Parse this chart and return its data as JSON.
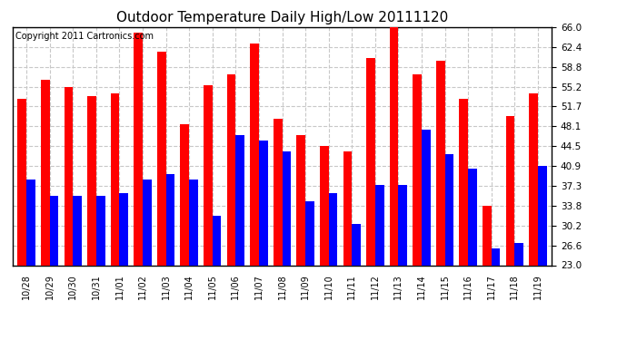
{
  "title": "Outdoor Temperature Daily High/Low 20111120",
  "copyright": "Copyright 2011 Cartronics.com",
  "labels": [
    "10/28",
    "10/29",
    "10/30",
    "10/31",
    "11/01",
    "11/02",
    "11/03",
    "11/04",
    "11/05",
    "11/06",
    "11/07",
    "11/08",
    "11/09",
    "11/10",
    "11/11",
    "11/12",
    "11/13",
    "11/14",
    "11/15",
    "11/16",
    "11/17",
    "11/18",
    "11/19"
  ],
  "highs": [
    53.0,
    56.5,
    55.2,
    53.5,
    54.0,
    65.0,
    61.5,
    48.5,
    55.5,
    57.5,
    63.0,
    49.5,
    46.5,
    44.5,
    43.5,
    60.5,
    66.0,
    57.5,
    60.0,
    53.0,
    33.8,
    50.0,
    54.0
  ],
  "lows": [
    38.5,
    35.5,
    35.5,
    35.5,
    36.0,
    38.5,
    39.5,
    38.5,
    32.0,
    46.5,
    45.5,
    43.5,
    34.5,
    36.0,
    30.5,
    37.5,
    37.5,
    47.5,
    43.0,
    40.5,
    26.0,
    27.0,
    41.0
  ],
  "high_color": "#ff0000",
  "low_color": "#0000ff",
  "bg_color": "#ffffff",
  "plot_bg_color": "#ffffff",
  "grid_color": "#c8c8c8",
  "title_fontsize": 11,
  "copyright_fontsize": 7,
  "ymin": 23.0,
  "ymax": 66.0,
  "yticks": [
    23.0,
    26.6,
    30.2,
    33.8,
    37.3,
    40.9,
    44.5,
    48.1,
    51.7,
    55.2,
    58.8,
    62.4,
    66.0
  ]
}
